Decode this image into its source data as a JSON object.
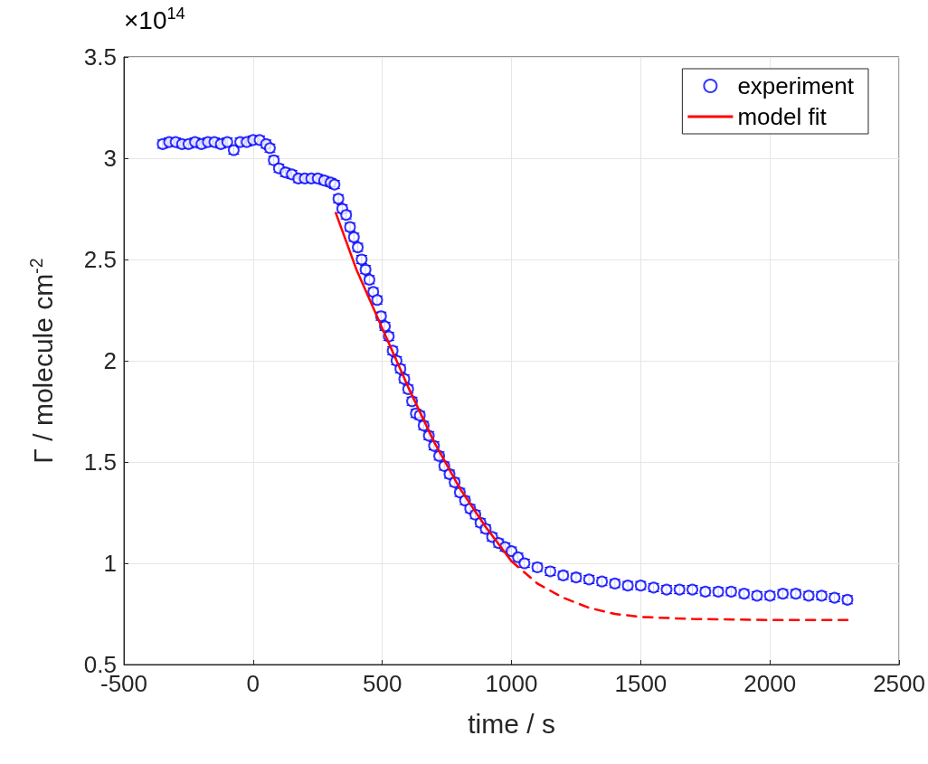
{
  "chart_data": {
    "type": "scatter",
    "xlabel": "time / s",
    "ylabel": "Γ / molecule cm$^{-2}$",
    "annotations": [
      "×10$^{14}$"
    ],
    "xlim": [
      -500,
      2500
    ],
    "xticks": [
      -500,
      0,
      500,
      1000,
      1500,
      2000,
      2500
    ],
    "ylim": [
      0.5,
      3.5
    ],
    "yticks": [
      0.5,
      1,
      1.5,
      2,
      2.5,
      3,
      3.5
    ],
    "grid": true,
    "legend": "top right",
    "series": [
      {
        "name": "experiment",
        "color": "#0000ff",
        "marker": "circle",
        "x": [
          -350,
          -325,
          -300,
          -275,
          -250,
          -225,
          -200,
          -175,
          -150,
          -125,
          -100,
          -75,
          -50,
          -25,
          0,
          25,
          50,
          65,
          80,
          100,
          125,
          150,
          175,
          200,
          225,
          250,
          275,
          300,
          315,
          330,
          345,
          360,
          375,
          390,
          405,
          420,
          435,
          450,
          465,
          480,
          495,
          510,
          525,
          540,
          555,
          570,
          585,
          600,
          615,
          630,
          645,
          660,
          680,
          700,
          720,
          740,
          760,
          780,
          800,
          820,
          840,
          860,
          880,
          900,
          925,
          950,
          975,
          1000,
          1025,
          1050,
          1100,
          1150,
          1200,
          1250,
          1300,
          1350,
          1400,
          1450,
          1500,
          1550,
          1600,
          1650,
          1700,
          1750,
          1800,
          1850,
          1900,
          1950,
          2000,
          2050,
          2100,
          2150,
          2200,
          2250,
          2300
        ],
        "values": [
          3.07,
          3.08,
          3.08,
          3.07,
          3.07,
          3.08,
          3.07,
          3.08,
          3.08,
          3.07,
          3.08,
          3.04,
          3.08,
          3.08,
          3.09,
          3.09,
          3.07,
          3.05,
          2.99,
          2.95,
          2.93,
          2.92,
          2.9,
          2.9,
          2.9,
          2.9,
          2.89,
          2.88,
          2.87,
          2.8,
          2.75,
          2.72,
          2.66,
          2.61,
          2.56,
          2.5,
          2.45,
          2.4,
          2.34,
          2.3,
          2.22,
          2.17,
          2.12,
          2.05,
          2.0,
          1.96,
          1.91,
          1.86,
          1.8,
          1.74,
          1.73,
          1.68,
          1.63,
          1.58,
          1.53,
          1.48,
          1.44,
          1.4,
          1.35,
          1.31,
          1.27,
          1.24,
          1.2,
          1.17,
          1.13,
          1.1,
          1.08,
          1.06,
          1.03,
          1.0,
          0.98,
          0.96,
          0.94,
          0.93,
          0.92,
          0.91,
          0.9,
          0.89,
          0.89,
          0.88,
          0.87,
          0.87,
          0.87,
          0.86,
          0.86,
          0.86,
          0.85,
          0.84,
          0.84,
          0.85,
          0.85,
          0.84,
          0.84,
          0.83,
          0.82
        ],
        "errors": [
          0.02,
          0.02,
          0.02,
          0.02,
          0.02,
          0.02,
          0.02,
          0.02,
          0.02,
          0.02,
          0.02,
          0.02,
          0.02,
          0.02,
          0.02,
          0.02,
          0.02,
          0.02,
          0.02,
          0.02,
          0.02,
          0.02,
          0.02,
          0.02,
          0.02,
          0.02,
          0.02,
          0.02,
          0.02,
          0.02,
          0.02,
          0.02,
          0.02,
          0.02,
          0.02,
          0.02,
          0.02,
          0.02,
          0.02,
          0.02,
          0.02,
          0.02,
          0.02,
          0.02,
          0.02,
          0.02,
          0.02,
          0.02,
          0.02,
          0.02,
          0.02,
          0.02,
          0.02,
          0.02,
          0.02,
          0.02,
          0.02,
          0.02,
          0.02,
          0.02,
          0.02,
          0.02,
          0.02,
          0.02,
          0.02,
          0.02,
          0.02,
          0.02,
          0.02,
          0.02,
          0.02,
          0.02,
          0.02,
          0.02,
          0.02,
          0.02,
          0.02,
          0.02,
          0.02,
          0.02,
          0.02,
          0.02,
          0.02,
          0.02,
          0.02,
          0.02,
          0.02,
          0.02,
          0.02,
          0.02,
          0.02,
          0.02,
          0.02,
          0.02,
          0.02
        ]
      },
      {
        "name": "model fit",
        "type": "line",
        "color": "#ff0000",
        "line_style": "solid",
        "x": [
          320,
          400,
          500,
          600,
          700,
          800,
          900,
          1000
        ],
        "values": [
          2.73,
          2.45,
          2.16,
          1.87,
          1.6,
          1.37,
          1.18,
          1.01
        ]
      },
      {
        "type": "line",
        "color": "#ff0000",
        "line_style": "dashed",
        "x": [
          1000,
          1100,
          1200,
          1300,
          1400,
          1500,
          1700,
          2000,
          2300
        ],
        "values": [
          1.01,
          0.9,
          0.83,
          0.78,
          0.75,
          0.735,
          0.725,
          0.72,
          0.72
        ]
      }
    ]
  }
}
